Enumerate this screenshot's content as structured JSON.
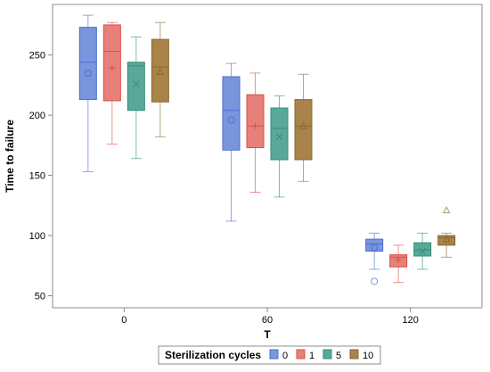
{
  "chart_data": {
    "type": "box",
    "title": "",
    "xlabel": "T",
    "ylabel": "Time to failure",
    "categories": [
      "0",
      "60",
      "120"
    ],
    "ylim": [
      40,
      292
    ],
    "yticks": [
      50,
      100,
      150,
      200,
      250
    ],
    "grid": false,
    "legend": {
      "title": "Sterilization cycles",
      "placement": "bottom"
    },
    "series": [
      {
        "name": "0",
        "color": "#4a6ed0",
        "fill": "#7b95dc",
        "mean_marker": "circle",
        "boxes": [
          {
            "category": "0",
            "min": 153,
            "q1": 213,
            "median": 244,
            "q3": 273,
            "max": 283,
            "mean": 235,
            "outliers": []
          },
          {
            "category": "60",
            "min": 112,
            "q1": 171,
            "median": 204,
            "q3": 232,
            "max": 243,
            "mean": 196,
            "outliers": []
          },
          {
            "category": "120",
            "min": 72,
            "q1": 87,
            "median": 93,
            "q3": 97,
            "max": 102,
            "mean": 90,
            "outliers": [
              62
            ]
          }
        ]
      },
      {
        "name": "1",
        "color": "#d94f45",
        "fill": "#e8807a",
        "mean_marker": "plus",
        "boxes": [
          {
            "category": "0",
            "min": 176,
            "q1": 212,
            "median": 253,
            "q3": 275,
            "max": 277,
            "mean": 239,
            "outliers": []
          },
          {
            "category": "60",
            "min": 136,
            "q1": 173,
            "median": 191,
            "q3": 217,
            "max": 235,
            "mean": 191,
            "outliers": []
          },
          {
            "category": "120",
            "min": 61,
            "q1": 74,
            "median": 82,
            "q3": 84,
            "max": 92,
            "mean": 80,
            "outliers": []
          }
        ]
      },
      {
        "name": "5",
        "color": "#2f8f7a",
        "fill": "#5aa898",
        "mean_marker": "x",
        "boxes": [
          {
            "category": "0",
            "min": 164,
            "q1": 204,
            "median": 241,
            "q3": 244,
            "max": 265,
            "mean": 226,
            "outliers": []
          },
          {
            "category": "60",
            "min": 132,
            "q1": 163,
            "median": 189,
            "q3": 206,
            "max": 216,
            "mean": 182,
            "outliers": []
          },
          {
            "category": "120",
            "min": 72,
            "q1": 83,
            "median": 88,
            "q3": 94,
            "max": 102,
            "mean": 87,
            "outliers": []
          }
        ]
      },
      {
        "name": "10",
        "color": "#8b6a30",
        "fill": "#a8834a",
        "mean_marker": "triangle",
        "boxes": [
          {
            "category": "0",
            "min": 182,
            "q1": 211,
            "median": 240,
            "q3": 263,
            "max": 277,
            "mean": 236,
            "outliers": []
          },
          {
            "category": "60",
            "min": 145,
            "q1": 163,
            "median": 191,
            "q3": 213,
            "max": 234,
            "mean": 191,
            "outliers": []
          },
          {
            "category": "120",
            "min": 82,
            "q1": 92,
            "median": 98,
            "q3": 100,
            "max": 102,
            "mean": 97,
            "outliers": [
              121
            ]
          }
        ]
      }
    ]
  }
}
